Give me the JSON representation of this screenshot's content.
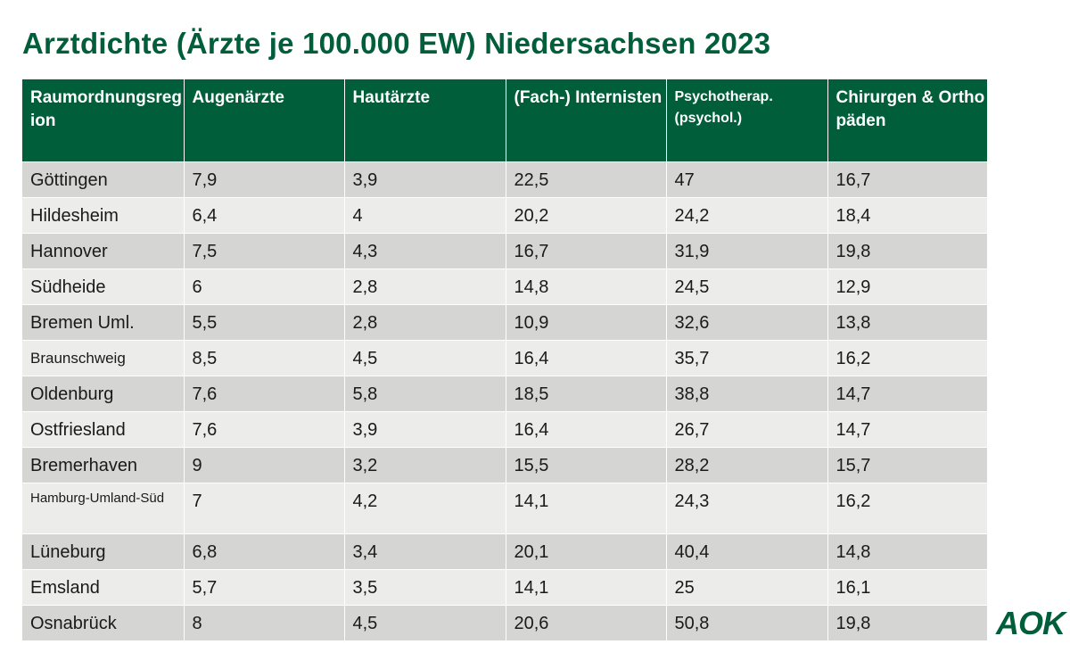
{
  "title": "Arztdichte (Ärzte je 100.000 EW) Niedersachsen 2023",
  "logo": "AOK",
  "colors": {
    "header_bg": "#005e3a",
    "title": "#005e3a",
    "row_dark": "#d5d5d3",
    "row_light": "#ececeb"
  },
  "chart_data": {
    "type": "table",
    "title": "Arztdichte (Ärzte je 100.000 EW) Niedersachsen 2023",
    "columns": [
      "Raumordnungsregion",
      "Augenärzte",
      "Hautärzte",
      "(Fach-) Internisten",
      "Psychotherap. (psychol.)",
      "Chirurgen & Orthopäden"
    ],
    "rows": [
      [
        "Göttingen",
        "7,9",
        "3,9",
        "22,5",
        "47",
        "16,7"
      ],
      [
        "Hildesheim",
        "6,4",
        "4",
        "20,2",
        "24,2",
        "18,4"
      ],
      [
        "Hannover",
        "7,5",
        "4,3",
        "16,7",
        "31,9",
        "19,8"
      ],
      [
        "Südheide",
        "6",
        "2,8",
        "14,8",
        "24,5",
        "12,9"
      ],
      [
        "Bremen Uml.",
        "5,5",
        "2,8",
        "10,9",
        "32,6",
        "13,8"
      ],
      [
        "Braunschweig",
        "8,5",
        "4,5",
        "16,4",
        "35,7",
        "16,2"
      ],
      [
        "Oldenburg",
        "7,6",
        "5,8",
        "18,5",
        "38,8",
        "14,7"
      ],
      [
        "Ostfriesland",
        "7,6",
        "3,9",
        "16,4",
        "26,7",
        "14,7"
      ],
      [
        "Bremerhaven",
        "9",
        "3,2",
        "15,5",
        "28,2",
        "15,7"
      ],
      [
        "Hamburg-Umland-Süd",
        "7",
        "4,2",
        "14,1",
        "24,3",
        "16,2"
      ],
      [
        "Lüneburg",
        "6,8",
        "3,4",
        "20,1",
        "40,4",
        "14,8"
      ],
      [
        "Emsland",
        "5,7",
        "3,5",
        "14,1",
        "25",
        "16,1"
      ],
      [
        "Osnabrück",
        "8",
        "4,5",
        "20,6",
        "50,8",
        "19,8"
      ]
    ]
  }
}
